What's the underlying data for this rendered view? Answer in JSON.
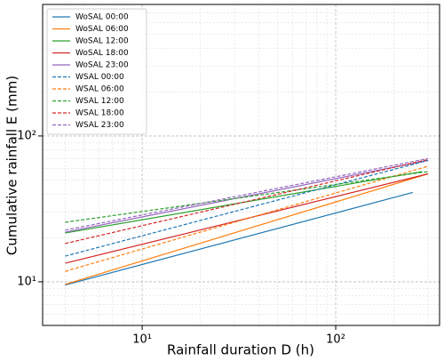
{
  "chart_data": {
    "type": "line",
    "x_label": "Rainfall duration D (h)",
    "y_label": "Cumulative rainfall E (mm)",
    "xscale": "log",
    "yscale": "log",
    "grid": true,
    "legend": "upper left",
    "xlim": [
      3.06,
      344
    ],
    "ylim": [
      5.02,
      798
    ],
    "xticks": [
      {
        "value": 10,
        "label": "10¹"
      },
      {
        "value": 100,
        "label": "10²"
      }
    ],
    "yticks": [
      {
        "value": 10,
        "label": "10¹"
      },
      {
        "value": 100,
        "label": "10²"
      }
    ],
    "xminorticks": [
      4,
      5,
      6,
      7,
      8,
      9,
      20,
      30,
      40,
      50,
      60,
      70,
      80,
      90,
      200,
      300
    ],
    "yminorticks": [
      6,
      7,
      8,
      9,
      20,
      30,
      40,
      50,
      60,
      70,
      80,
      90,
      200,
      300,
      400,
      500,
      600,
      700
    ],
    "series": [
      {
        "name": "WoSAL 00:00",
        "color": "#1f77b4",
        "dash": false,
        "x": [
          4,
          250
        ],
        "values": [
          9.5,
          41
        ]
      },
      {
        "name": "WoSAL 06:00",
        "color": "#ff7f0e",
        "dash": false,
        "x": [
          4,
          300
        ],
        "values": [
          9.6,
          55
        ]
      },
      {
        "name": "WoSAL 12:00",
        "color": "#2ca02c",
        "dash": false,
        "x": [
          4,
          280
        ],
        "values": [
          21.6,
          57
        ]
      },
      {
        "name": "WoSAL 18:00",
        "color": "#d62728",
        "dash": false,
        "x": [
          4,
          300
        ],
        "values": [
          13.4,
          55
        ]
      },
      {
        "name": "WoSAL 23:00",
        "color": "#9467bd",
        "dash": false,
        "x": [
          4,
          300
        ],
        "values": [
          21.9,
          68
        ]
      },
      {
        "name": "WSAL 00:00",
        "color": "#1f77b4",
        "dash": true,
        "x": [
          4,
          300
        ],
        "values": [
          15,
          68
        ]
      },
      {
        "name": "WSAL 06:00",
        "color": "#ff7f0e",
        "dash": true,
        "x": [
          4,
          300
        ],
        "values": [
          11.8,
          62
        ]
      },
      {
        "name": "WSAL 12:00",
        "color": "#2ca02c",
        "dash": true,
        "x": [
          4,
          300
        ],
        "values": [
          25.6,
          57
        ]
      },
      {
        "name": "WSAL 18:00",
        "color": "#d62728",
        "dash": true,
        "x": [
          4,
          300
        ],
        "values": [
          18.3,
          69
        ]
      },
      {
        "name": "WSAL 23:00",
        "color": "#9467bd",
        "dash": true,
        "x": [
          4,
          300
        ],
        "values": [
          22.6,
          70
        ]
      }
    ]
  }
}
